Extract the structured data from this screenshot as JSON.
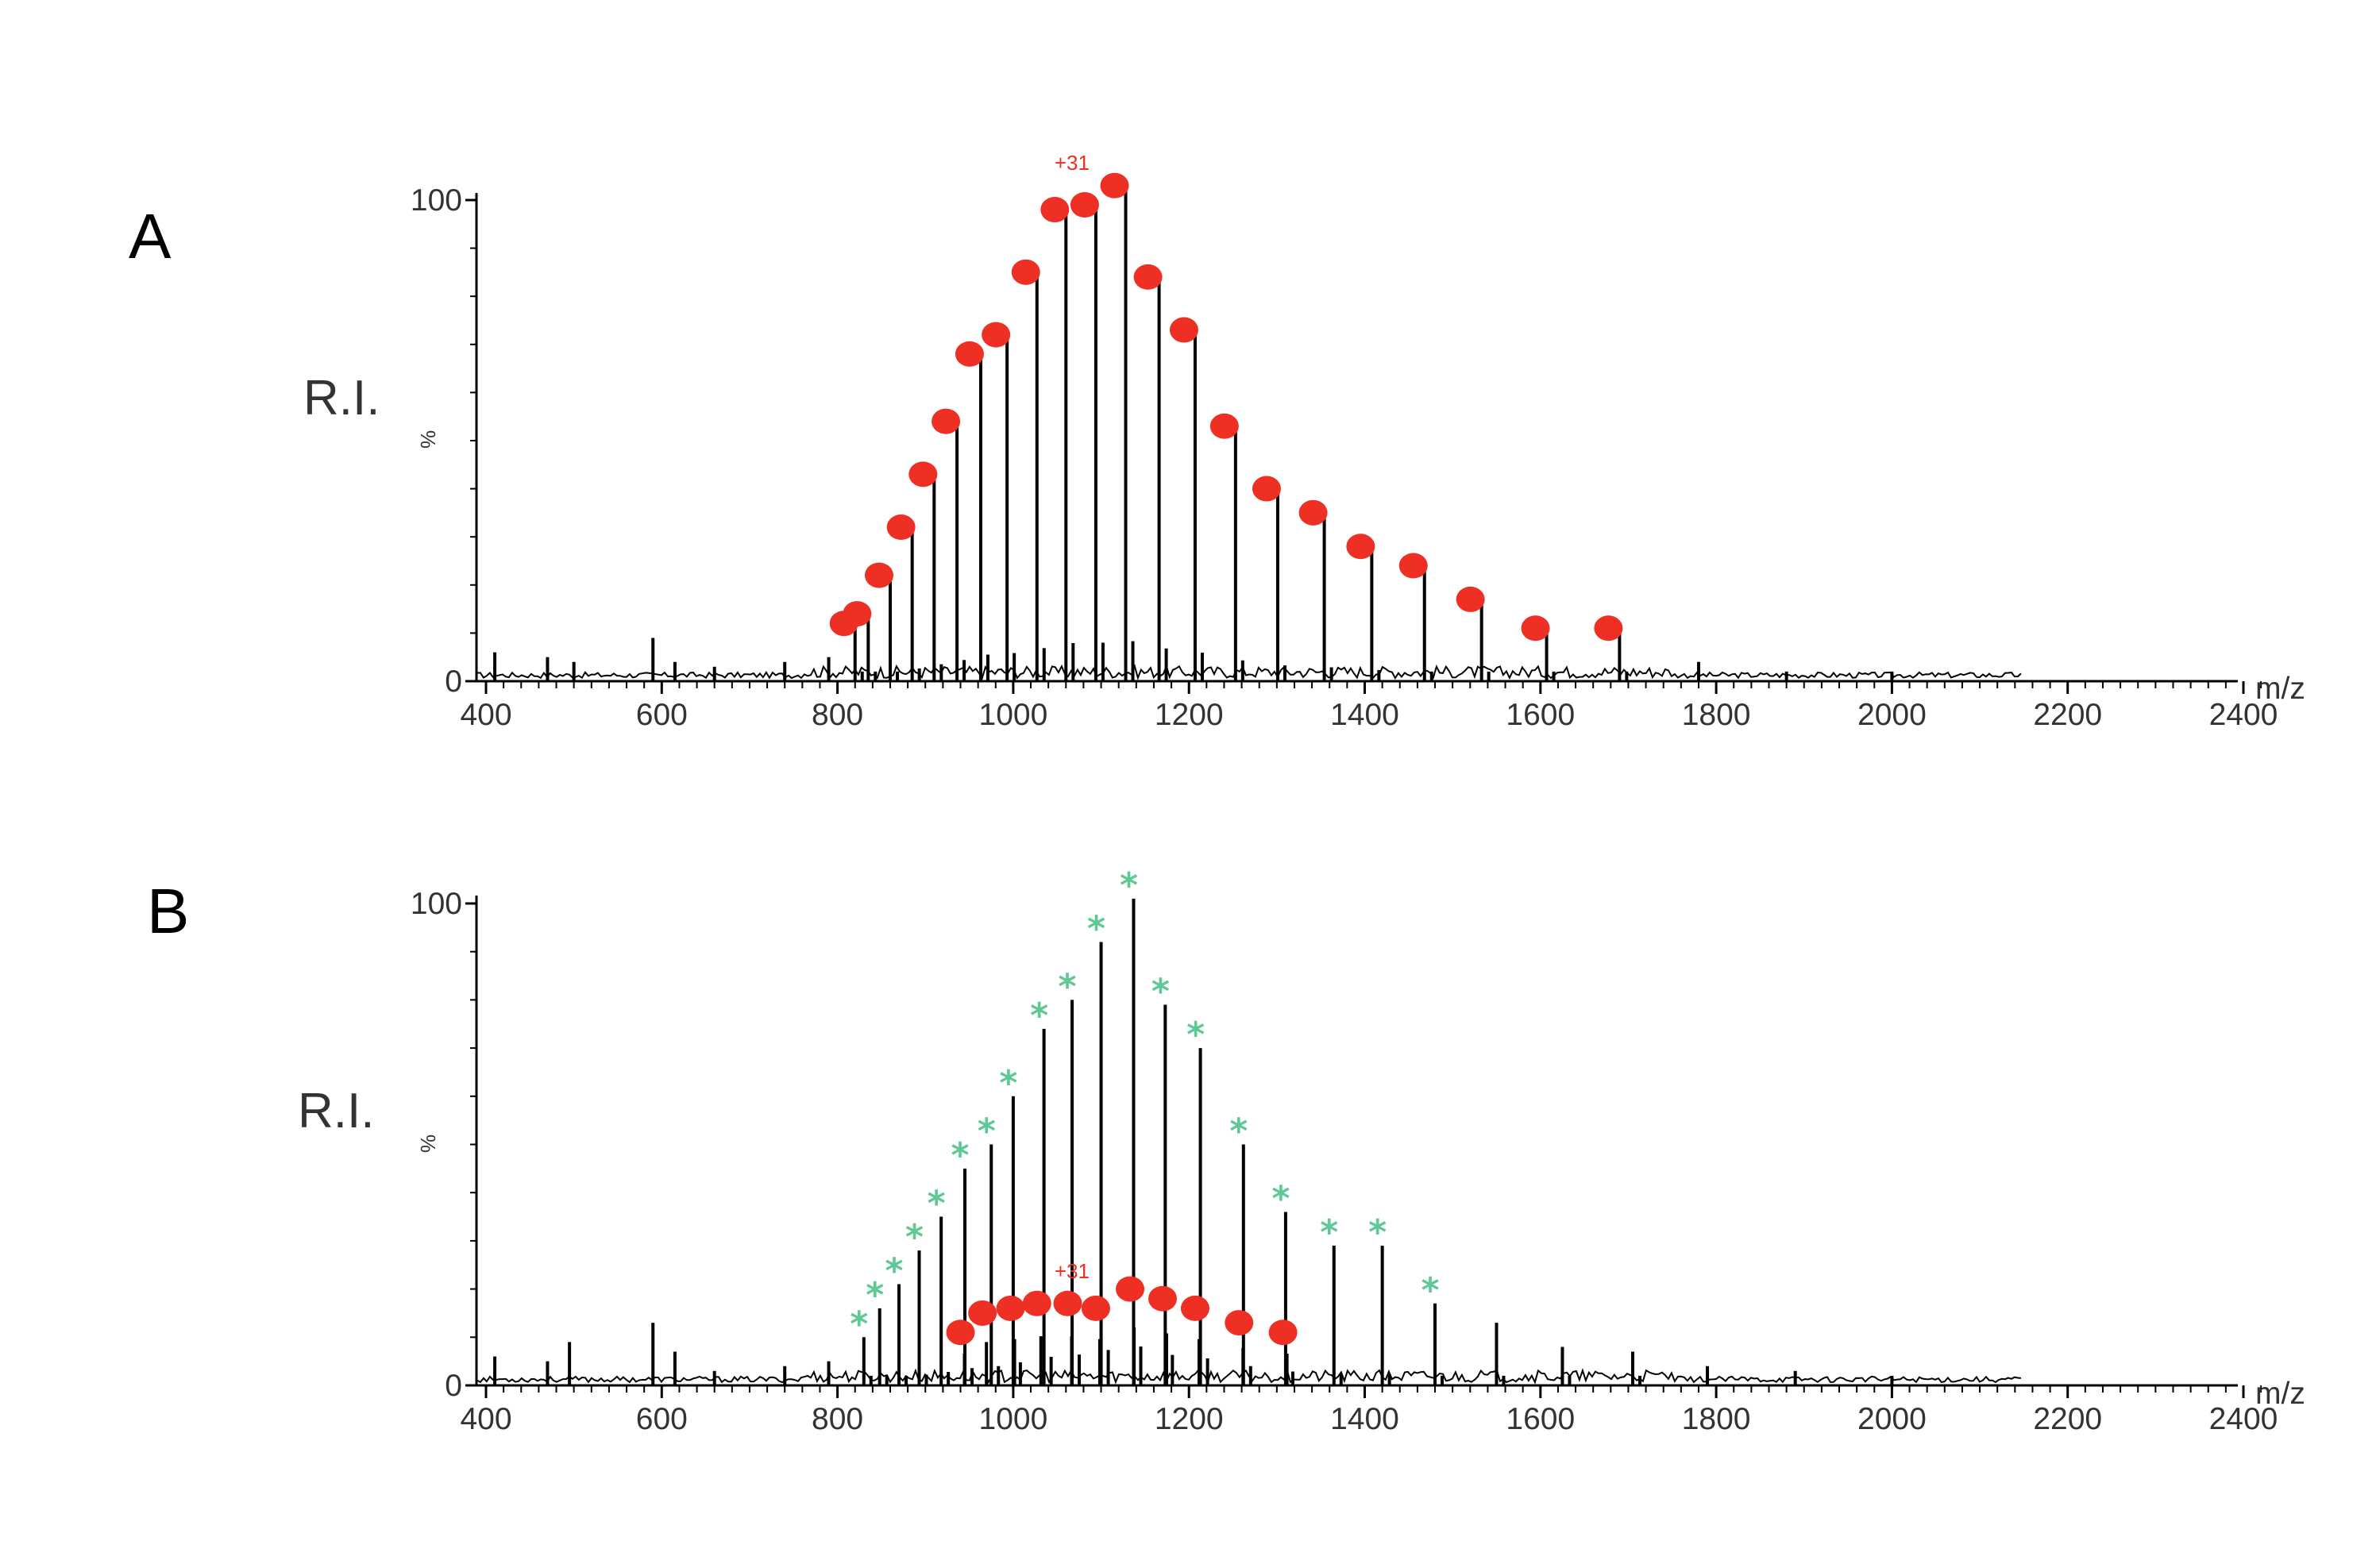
{
  "chart_data": [
    {
      "type": "bar",
      "panel": "A",
      "ylabel": "R.I.",
      "ylabel_small": "%",
      "xlabel": "m/z",
      "xlim": [
        380,
        2430
      ],
      "ylim": [
        0,
        100
      ],
      "x_ticks": [
        400,
        600,
        800,
        1000,
        1200,
        1400,
        1600,
        1800,
        2000,
        2200,
        2400
      ],
      "y_ticks": [
        0,
        100
      ],
      "peaks": [
        {
          "mz": 820,
          "ri": 13
        },
        {
          "mz": 835,
          "ri": 15
        },
        {
          "mz": 860,
          "ri": 23
        },
        {
          "mz": 885,
          "ri": 33
        },
        {
          "mz": 910,
          "ri": 44
        },
        {
          "mz": 936,
          "ri": 55
        },
        {
          "mz": 963,
          "ri": 69
        },
        {
          "mz": 993,
          "ri": 73
        },
        {
          "mz": 1027,
          "ri": 86
        },
        {
          "mz": 1060,
          "ri": 99
        },
        {
          "mz": 1094,
          "ri": 100
        },
        {
          "mz": 1128,
          "ri": 104
        },
        {
          "mz": 1166,
          "ri": 85
        },
        {
          "mz": 1207,
          "ri": 74
        },
        {
          "mz": 1253,
          "ri": 54
        },
        {
          "mz": 1301,
          "ri": 41
        },
        {
          "mz": 1354,
          "ri": 36
        },
        {
          "mz": 1408,
          "ri": 29
        },
        {
          "mz": 1468,
          "ri": 25
        },
        {
          "mz": 1533,
          "ri": 18
        },
        {
          "mz": 1607,
          "ri": 12
        },
        {
          "mz": 1690,
          "ri": 12
        }
      ],
      "minor_peaks": [
        {
          "mz": 410,
          "ri": 6
        },
        {
          "mz": 470,
          "ri": 5
        },
        {
          "mz": 500,
          "ri": 4
        },
        {
          "mz": 590,
          "ri": 9
        },
        {
          "mz": 615,
          "ri": 4
        },
        {
          "mz": 660,
          "ri": 3
        },
        {
          "mz": 740,
          "ri": 4
        },
        {
          "mz": 790,
          "ri": 5
        },
        {
          "mz": 1780,
          "ri": 4
        },
        {
          "mz": 1880,
          "ri": 2
        },
        {
          "mz": 2000,
          "ri": 2
        }
      ],
      "annotations": [
        {
          "text": "+31",
          "mz": 1094,
          "ri": 100
        }
      ]
    },
    {
      "type": "bar",
      "panel": "B",
      "ylabel": "R.I.",
      "ylabel_small": "%",
      "xlabel": "m/z",
      "xlim": [
        380,
        2430
      ],
      "ylim": [
        0,
        100
      ],
      "x_ticks": [
        400,
        600,
        800,
        1000,
        1200,
        1400,
        1600,
        1800,
        2000,
        2200,
        2400
      ],
      "y_ticks": [
        0,
        100
      ],
      "peaks": [
        {
          "mz": 830,
          "ri": 10
        },
        {
          "mz": 848,
          "ri": 16
        },
        {
          "mz": 870,
          "ri": 21
        },
        {
          "mz": 893,
          "ri": 28
        },
        {
          "mz": 918,
          "ri": 35
        },
        {
          "mz": 945,
          "ri": 45
        },
        {
          "mz": 975,
          "ri": 50
        },
        {
          "mz": 1000,
          "ri": 60
        },
        {
          "mz": 1035,
          "ri": 74
        },
        {
          "mz": 1067,
          "ri": 80
        },
        {
          "mz": 1100,
          "ri": 92
        },
        {
          "mz": 1137,
          "ri": 101
        },
        {
          "mz": 1173,
          "ri": 79
        },
        {
          "mz": 1213,
          "ri": 70
        },
        {
          "mz": 1262,
          "ri": 50
        },
        {
          "mz": 1310,
          "ri": 36
        },
        {
          "mz": 1365,
          "ri": 29
        },
        {
          "mz": 1420,
          "ri": 29
        },
        {
          "mz": 1480,
          "ri": 17
        },
        {
          "mz": 1550,
          "ri": 13
        },
        {
          "mz": 1625,
          "ri": 8
        },
        {
          "mz": 1705,
          "ri": 7
        }
      ],
      "green_marked": [
        830,
        848,
        870,
        893,
        918,
        945,
        975,
        1000,
        1035,
        1067,
        1100,
        1137,
        1173,
        1213,
        1262,
        1310,
        1365,
        1420,
        1480
      ],
      "red_series": [
        {
          "mz": 940,
          "ri": 11
        },
        {
          "mz": 965,
          "ri": 15
        },
        {
          "mz": 997,
          "ri": 16
        },
        {
          "mz": 1027,
          "ri": 17
        },
        {
          "mz": 1062,
          "ri": 17
        },
        {
          "mz": 1094,
          "ri": 16
        },
        {
          "mz": 1133,
          "ri": 20
        },
        {
          "mz": 1170,
          "ri": 18
        },
        {
          "mz": 1207,
          "ri": 16
        },
        {
          "mz": 1257,
          "ri": 13
        },
        {
          "mz": 1307,
          "ri": 11
        }
      ],
      "minor_peaks": [
        {
          "mz": 410,
          "ri": 6
        },
        {
          "mz": 470,
          "ri": 5
        },
        {
          "mz": 495,
          "ri": 9
        },
        {
          "mz": 590,
          "ri": 13
        },
        {
          "mz": 615,
          "ri": 7
        },
        {
          "mz": 660,
          "ri": 3
        },
        {
          "mz": 740,
          "ri": 4
        },
        {
          "mz": 790,
          "ri": 5
        },
        {
          "mz": 1790,
          "ri": 4
        },
        {
          "mz": 1890,
          "ri": 3
        },
        {
          "mz": 2000,
          "ri": 2
        }
      ],
      "annotations": [
        {
          "text": "+31",
          "mz": 1094,
          "ri": 16
        }
      ]
    }
  ],
  "colors": {
    "red_marker": "#ee2f24",
    "green_marker": "#5fc995",
    "peak": "#000000"
  }
}
